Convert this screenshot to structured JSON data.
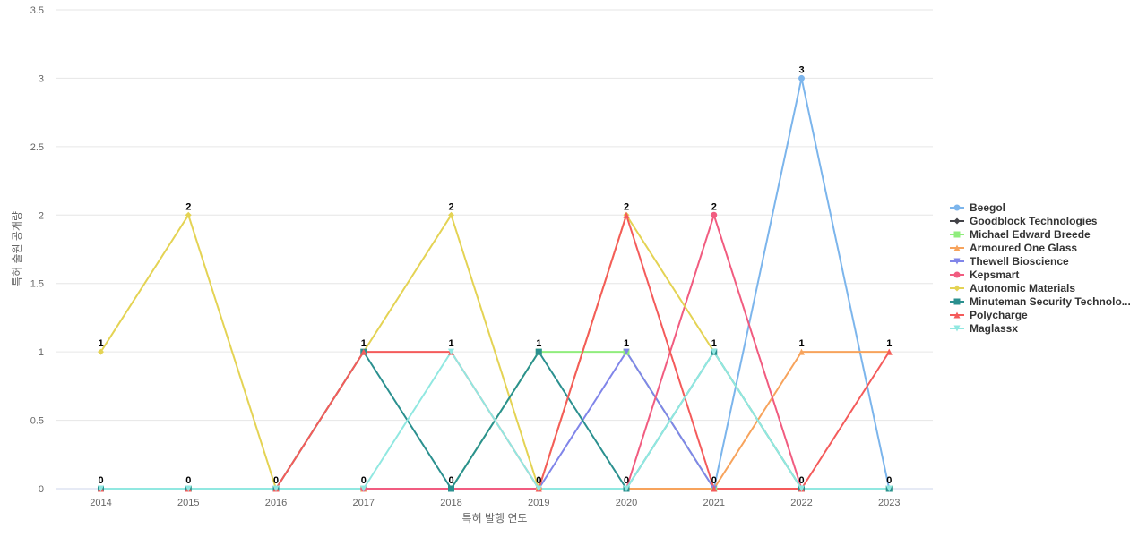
{
  "chart_data": {
    "type": "line",
    "xlabel": "특허 발행 연도",
    "ylabel": "특허 출원 공개량",
    "ylim": [
      0,
      3.5
    ],
    "y_ticks": [
      "0",
      "0.5",
      "1",
      "1.5",
      "2",
      "2.5",
      "3",
      "3.5"
    ],
    "y_tick_values": [
      0,
      0.5,
      1,
      1.5,
      2,
      2.5,
      3,
      3.5
    ],
    "categories": [
      "2014",
      "2015",
      "2016",
      "2017",
      "2018",
      "2019",
      "2020",
      "2021",
      "2022",
      "2023"
    ],
    "grid": "horizontal",
    "legend_position": "right",
    "series": [
      {
        "name": "Beegol",
        "color": "#7cb5ec",
        "marker": "circle",
        "values": [
          0,
          0,
          0,
          0,
          0,
          0,
          0,
          0,
          3,
          0
        ]
      },
      {
        "name": "Goodblock Technologies",
        "color": "#434348",
        "marker": "diamond",
        "values": [
          0,
          0,
          0,
          0,
          0,
          0,
          0,
          0,
          0,
          0
        ]
      },
      {
        "name": "Michael Edward Breede",
        "color": "#90ed7d",
        "marker": "square",
        "values": [
          0,
          0,
          0,
          0,
          0,
          1,
          1,
          0,
          0,
          0
        ]
      },
      {
        "name": "Armoured One Glass",
        "color": "#f7a35c",
        "marker": "triangle",
        "values": [
          0,
          0,
          0,
          0,
          0,
          0,
          0,
          0,
          1,
          1
        ]
      },
      {
        "name": "Thewell Bioscience",
        "color": "#8085e9",
        "marker": "triangle-down",
        "values": [
          0,
          0,
          0,
          0,
          0,
          0,
          1,
          0,
          0,
          0
        ]
      },
      {
        "name": "Kepsmart",
        "color": "#f15c80",
        "marker": "circle",
        "values": [
          0,
          0,
          0,
          0,
          0,
          0,
          0,
          2,
          0,
          0
        ]
      },
      {
        "name": "Autonomic Materials",
        "color": "#e4d354",
        "marker": "diamond",
        "values": [
          1,
          2,
          0,
          1,
          2,
          0,
          2,
          1,
          0,
          0
        ]
      },
      {
        "name": "Minuteman Security Technolo...",
        "color": "#2b908f",
        "marker": "square",
        "values": [
          0,
          0,
          0,
          1,
          0,
          1,
          0,
          1,
          0,
          0
        ]
      },
      {
        "name": "Polycharge",
        "color": "#f45b5b",
        "marker": "triangle",
        "values": [
          0,
          0,
          0,
          1,
          1,
          0,
          2,
          0,
          0,
          1
        ]
      },
      {
        "name": "Maglassx",
        "color": "#91e8e1",
        "marker": "triangle-down",
        "values": [
          0,
          0,
          0,
          0,
          1,
          0,
          0,
          1,
          0,
          0
        ]
      }
    ],
    "data_labels": [
      {
        "x": "2014",
        "y": 1,
        "text": "1"
      },
      {
        "x": "2014",
        "y": 0,
        "text": "0"
      },
      {
        "x": "2015",
        "y": 2,
        "text": "2"
      },
      {
        "x": "2015",
        "y": 0,
        "text": "0"
      },
      {
        "x": "2016",
        "y": 0,
        "text": "0"
      },
      {
        "x": "2017",
        "y": 1,
        "text": "1"
      },
      {
        "x": "2017",
        "y": 0,
        "text": "0"
      },
      {
        "x": "2018",
        "y": 2,
        "text": "2"
      },
      {
        "x": "2018",
        "y": 1,
        "text": "1"
      },
      {
        "x": "2018",
        "y": 0,
        "text": "0"
      },
      {
        "x": "2019",
        "y": 1,
        "text": "1"
      },
      {
        "x": "2019",
        "y": 0,
        "text": "0"
      },
      {
        "x": "2020",
        "y": 2,
        "text": "2"
      },
      {
        "x": "2020",
        "y": 1,
        "text": "1"
      },
      {
        "x": "2020",
        "y": 0,
        "text": "0"
      },
      {
        "x": "2021",
        "y": 2,
        "text": "2"
      },
      {
        "x": "2021",
        "y": 1,
        "text": "1"
      },
      {
        "x": "2021",
        "y": 0,
        "text": "0"
      },
      {
        "x": "2022",
        "y": 3,
        "text": "3"
      },
      {
        "x": "2022",
        "y": 1,
        "text": "1"
      },
      {
        "x": "2022",
        "y": 0,
        "text": "0"
      },
      {
        "x": "2023",
        "y": 1,
        "text": "1"
      },
      {
        "x": "2023",
        "y": 0,
        "text": "0"
      }
    ]
  }
}
